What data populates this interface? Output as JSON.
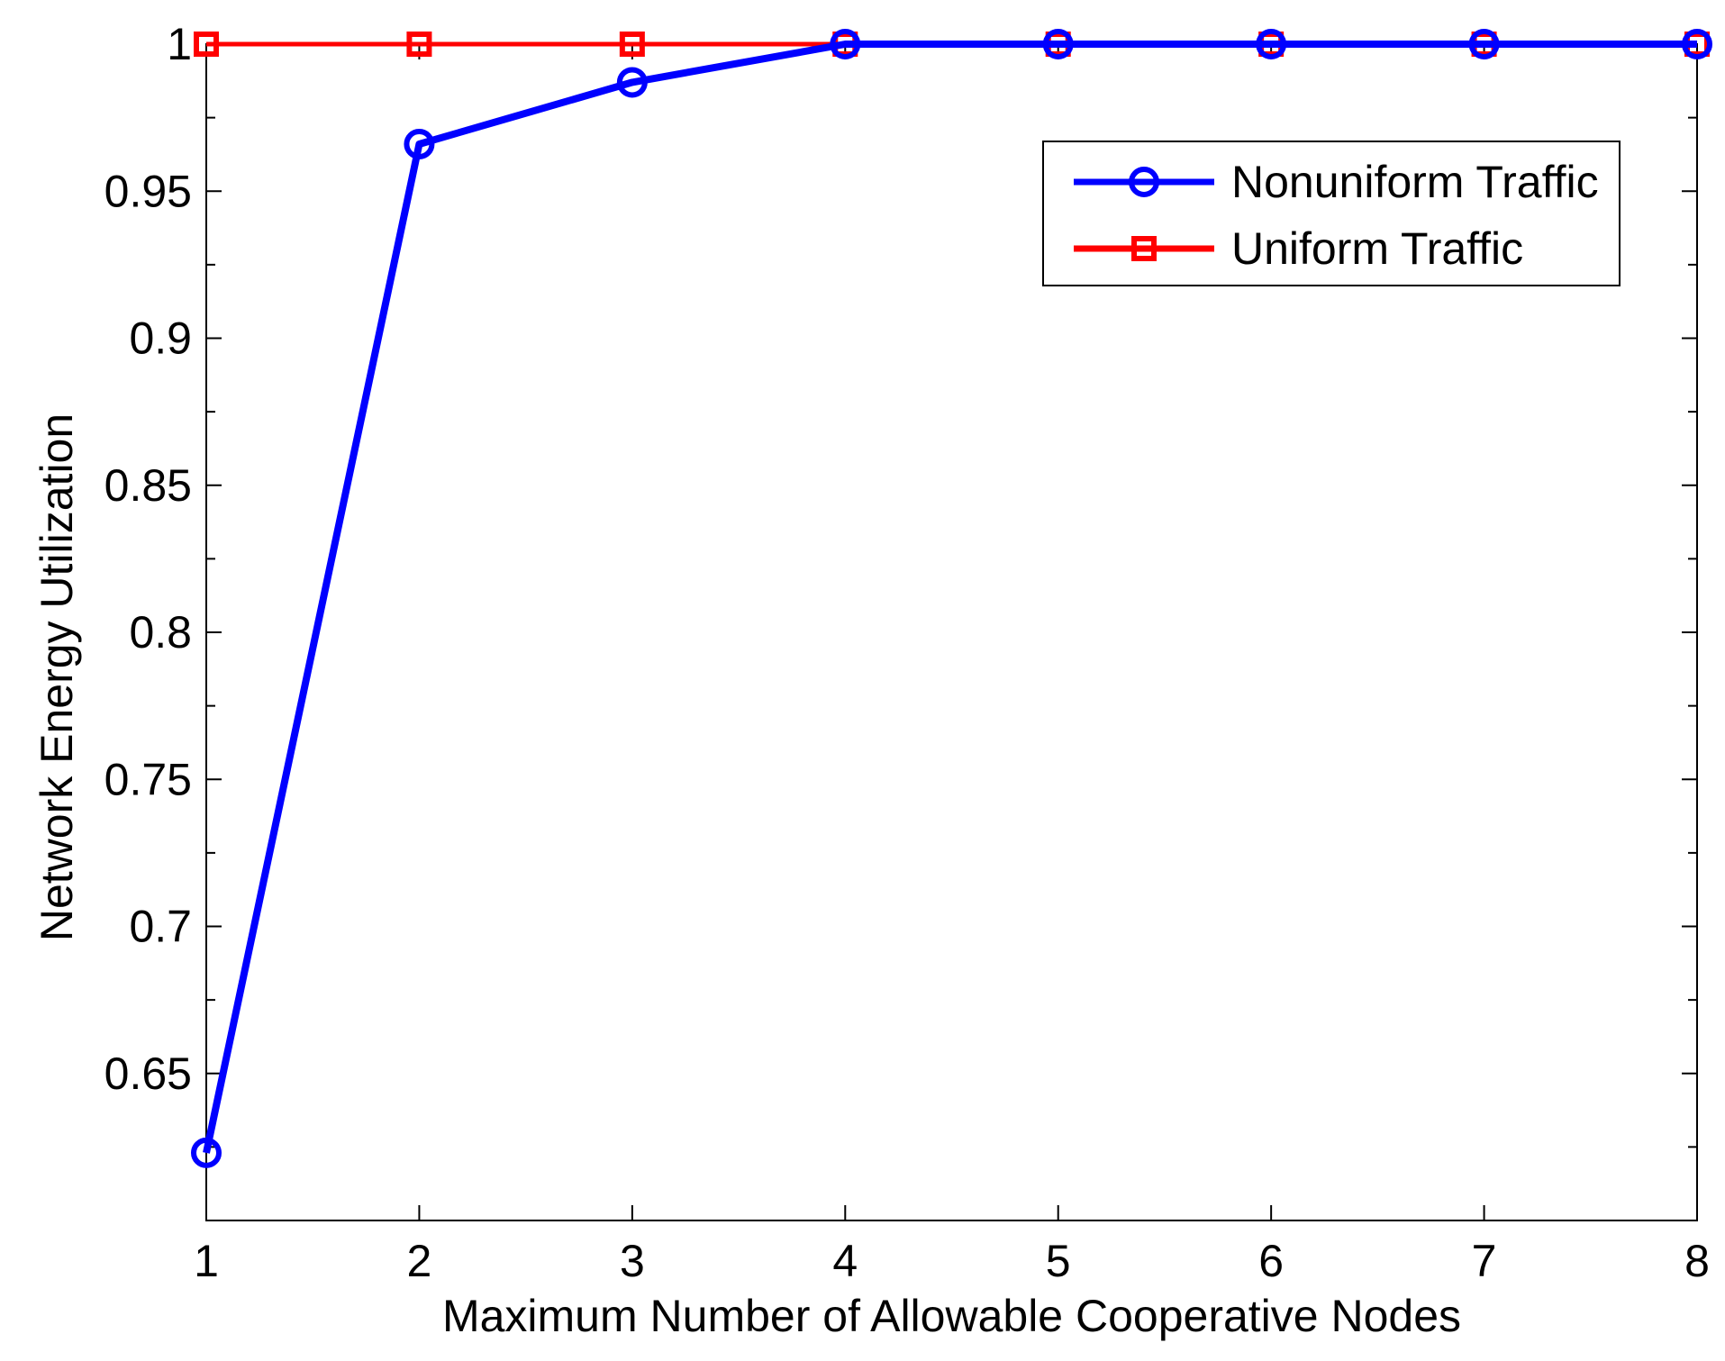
{
  "chart_data": {
    "type": "line",
    "title": "",
    "xlabel": "Maximum Number of Allowable Cooperative Nodes",
    "ylabel": "Network Energy Utilization",
    "xlim": [
      1,
      8
    ],
    "ylim": [
      0.6,
      1.0
    ],
    "x_ticks": [
      1,
      2,
      3,
      4,
      5,
      6,
      7,
      8
    ],
    "x_tick_labels": [
      "1",
      "2",
      "3",
      "4",
      "5",
      "6",
      "7",
      "8"
    ],
    "y_ticks": [
      0.65,
      0.7,
      0.75,
      0.8,
      0.85,
      0.9,
      0.95,
      1.0
    ],
    "y_tick_labels": [
      "0.65",
      "0.7",
      "0.75",
      "0.8",
      "0.85",
      "0.9",
      "0.95",
      "1"
    ],
    "grid": false,
    "legend_position": "top-right",
    "x": [
      1,
      2,
      3,
      4,
      5,
      6,
      7,
      8
    ],
    "series": [
      {
        "name": "Nonuniform Traffic",
        "values": [
          0.623,
          0.966,
          0.987,
          1.0,
          1.0,
          1.0,
          1.0,
          1.0
        ],
        "color": "#0000ff",
        "marker": "circle"
      },
      {
        "name": "Uniform Traffic",
        "values": [
          1.0,
          1.0,
          1.0,
          1.0,
          1.0,
          1.0,
          1.0,
          1.0
        ],
        "color": "#ff0000",
        "marker": "square"
      }
    ]
  }
}
